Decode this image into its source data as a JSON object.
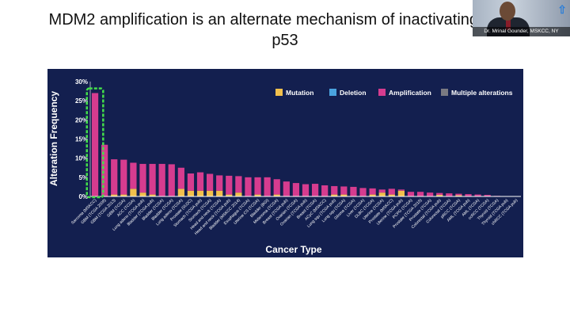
{
  "slide": {
    "title_line1": "MDM2 amplification is an alternate mechanism of inactivating wi",
    "title_line2": "p53"
  },
  "video": {
    "caption": "Dr. Mrinal Gounder, MSKCC, NY",
    "logo": "arrow-up-icon"
  },
  "chart_data": {
    "type": "bar",
    "stacked": true,
    "title": "",
    "xlabel": "Cancer Type",
    "ylabel": "Alteration Frequency",
    "ylim": [
      0,
      30
    ],
    "yticks": [
      "0%",
      "5%",
      "10%",
      "15%",
      "20%",
      "25%",
      "30%"
    ],
    "grid": false,
    "legend_position": "top-right",
    "highlight": "Sarcoma (MSKCC)",
    "categories": [
      "Sarcoma (MSKCC)",
      "GBM (TCGA 2008)",
      "GBM (TCGA 2013)",
      "GBM (TCGA)",
      "ACC (TCGA)",
      "Lung adeno (TCGA pub)",
      "Bladder (TCGA pub)",
      "Bladder (TCGA)",
      "Bladder (TCGA)",
      "Lung adeno (TCGA)",
      "Prostate (SU2C)",
      "Stomach (TCGA pub)",
      "Stomach (TCGA)",
      "Head and neck (TCGA)",
      "Head and neck (TCGA pub)",
      "Bladder (MSKCC 2014)",
      "Esophagus (TCGA)",
      "Uterine CS (TCGA)",
      "Bladder (BGI)",
      "Melanoma (TCGA)",
      "Breast (TCGA pub)",
      "Ovarian (TCGA)",
      "Ovarian (TCGA pub)",
      "Breast (TCGA)",
      "ACyC (MSKCC)",
      "Lung squ (TCGA pub)",
      "Lung squ (TCGA)",
      "Glioma (TCGA)",
      "Liver (TCGA)",
      "DLBC (TCGA)",
      "Uterine (TCGA)",
      "Prostate (MSKCC)",
      "Uterine (TCGA pub)",
      "PCPG (TCGA)",
      "Prostate (TCGA 2015)",
      "Prostate (TCGA)",
      "Colorectal (TCGA pub)",
      "Colorectal (TCGA)",
      "pRCC (TCGA)",
      "AML (TCGA pub)",
      "AML (TCGA)",
      "ccRCC (TCGA)",
      "Thyroid (TCGA)",
      "Thyroid (TCGA pub)",
      "chRCC (TCGA pub)"
    ],
    "series": [
      {
        "name": "Mutation",
        "color": "#f2c04d",
        "values": [
          0,
          0,
          0.5,
          0.5,
          2,
          1,
          0.5,
          0,
          0,
          2,
          1.5,
          1.5,
          1.5,
          1.5,
          0.5,
          1,
          0,
          0.5,
          0,
          0.5,
          0,
          0,
          0,
          0,
          0,
          0.5,
          0.5,
          0,
          0,
          0.5,
          1,
          0.5,
          1.5,
          0,
          0,
          0,
          0.4,
          0,
          0.3,
          0,
          0,
          0,
          0,
          0,
          0
        ]
      },
      {
        "name": "Deletion",
        "color": "#4aa3df",
        "values": [
          0,
          0,
          0,
          0,
          0,
          0,
          0,
          0,
          0,
          0,
          0,
          0,
          0,
          0,
          0,
          0,
          0,
          0,
          0,
          0,
          0,
          0,
          0,
          0,
          0,
          0,
          0,
          0,
          0,
          0,
          0,
          0,
          0,
          0,
          0,
          0,
          0,
          0,
          0,
          0,
          0,
          0,
          0,
          0,
          0
        ]
      },
      {
        "name": "Amplification",
        "color": "#d63c8f",
        "values": [
          27,
          13.5,
          9.2,
          9.1,
          6.8,
          7.5,
          8,
          8.5,
          8.4,
          5.5,
          4.5,
          4.8,
          4.4,
          4,
          4.9,
          4.3,
          5,
          4.5,
          5,
          4,
          3.9,
          3.5,
          3.2,
          3.3,
          2.9,
          2.2,
          2.1,
          2.5,
          2.2,
          1.6,
          0.8,
          1.5,
          0.3,
          1.2,
          1.2,
          1,
          0.5,
          0.8,
          0.4,
          0.6,
          0.5,
          0.4,
          0.15,
          0.1,
          0.1
        ]
      },
      {
        "name": "Multiple alterations",
        "color": "#7a7a82",
        "values": [
          0,
          0,
          0,
          0,
          0,
          0,
          0,
          0,
          0,
          0,
          0,
          0,
          0,
          0,
          0,
          0,
          0,
          0,
          0,
          0,
          0,
          0,
          0,
          0,
          0,
          0,
          0,
          0,
          0,
          0,
          0,
          0,
          0,
          0,
          0,
          0,
          0,
          0,
          0,
          0,
          0,
          0,
          0,
          0,
          0
        ]
      }
    ]
  }
}
